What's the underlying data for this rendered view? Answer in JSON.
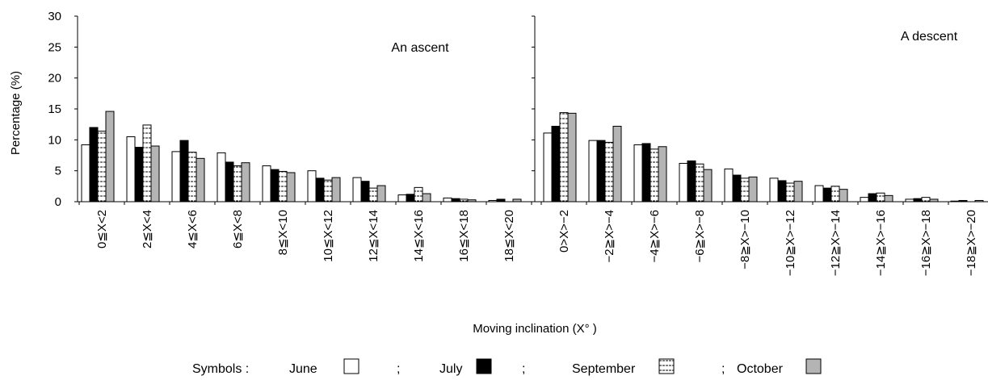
{
  "chart_data": {
    "type": "bar",
    "ylabel": "Percentage (%)",
    "xlabel": "Moving inclination (X° )",
    "ylim": [
      0,
      30
    ],
    "yticks": [
      "0",
      "5",
      "10",
      "15",
      "20",
      "25",
      "30"
    ],
    "grid": false,
    "legend_position": "bottom",
    "legend": {
      "prefix": "Symbols :",
      "separator": ";",
      "entries": [
        "June",
        "July",
        "September",
        "October"
      ]
    },
    "series_styles": [
      {
        "fill": "#ffffff",
        "pattern": "none"
      },
      {
        "fill": "#000000",
        "pattern": "none"
      },
      {
        "fill": "#ffffff",
        "pattern": "dashed"
      },
      {
        "fill": "#b4b4b4",
        "pattern": "none"
      }
    ],
    "panels": [
      {
        "title": "An ascent",
        "categories": [
          "0≦X<2",
          "2≦X<4",
          "4≦X<6",
          "6≦X<8",
          "8≦X<10",
          "10≦X<12",
          "12≦X<14",
          "14≦X<16",
          "16≦X<18",
          "18≦X<20"
        ],
        "series": [
          {
            "values": [
              9.2,
              10.5,
              8.1,
              7.9,
              5.8,
              5.0,
              3.9,
              1.1,
              0.6,
              0.2
            ]
          },
          {
            "values": [
              12.0,
              8.8,
              9.9,
              6.4,
              5.2,
              3.8,
              3.3,
              1.2,
              0.5,
              0.4
            ]
          },
          {
            "values": [
              11.4,
              12.4,
              8.0,
              5.8,
              4.9,
              3.5,
              2.2,
              2.3,
              0.4,
              0.0
            ]
          },
          {
            "values": [
              14.6,
              9.0,
              7.0,
              6.3,
              4.7,
              3.9,
              2.6,
              1.3,
              0.3,
              0.4
            ]
          }
        ]
      },
      {
        "title": "A descent",
        "categories": [
          "0>X>−2",
          "−2≧X>−4",
          "−4≧X>−6",
          "−6≧X>−8",
          "−8≧X>−10",
          "−10≧X>−12",
          "−12≧X>−14",
          "−14≧X>−16",
          "−16≧X>−18",
          "−18≧X>−20"
        ],
        "series": [
          {
            "values": [
              11.1,
              9.9,
              9.2,
              6.2,
              5.3,
              3.8,
              2.6,
              0.7,
              0.4,
              0.1
            ]
          },
          {
            "values": [
              12.2,
              9.9,
              9.4,
              6.6,
              4.3,
              3.4,
              2.2,
              1.3,
              0.5,
              0.2
            ]
          },
          {
            "values": [
              14.4,
              9.6,
              8.5,
              6.1,
              3.8,
              3.0,
              2.5,
              1.4,
              0.7,
              0.0
            ]
          },
          {
            "values": [
              14.3,
              12.2,
              8.9,
              5.2,
              4.0,
              3.3,
              2.0,
              1.0,
              0.4,
              0.2
            ]
          }
        ]
      }
    ]
  }
}
